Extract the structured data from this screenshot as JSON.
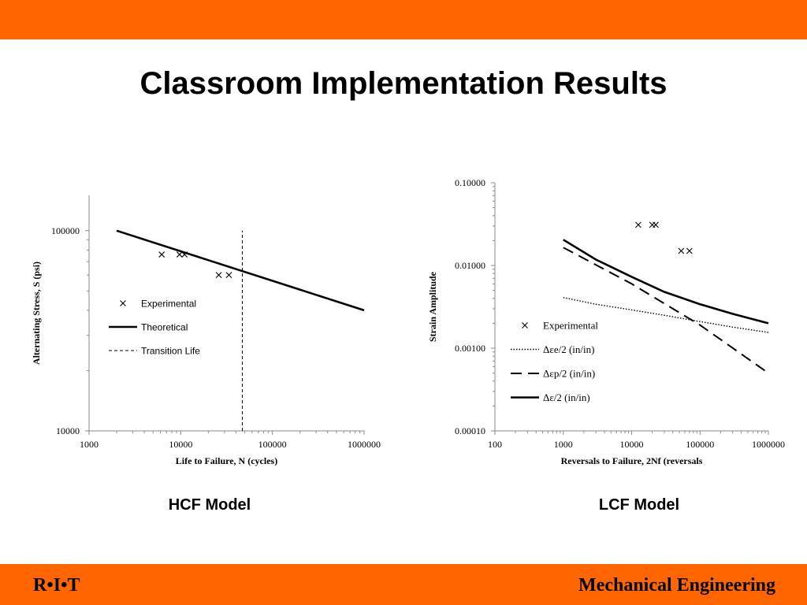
{
  "slide": {
    "title": "Classroom Implementation Results",
    "accent_color": "#ff6600",
    "footer_left": "R•I•T",
    "footer_right": "Mechanical Engineering"
  },
  "captions": [
    "HCF Model",
    "LCF Model"
  ],
  "chart_data": [
    {
      "type": "line",
      "xscale": "log",
      "yscale": "log",
      "xlim": [
        1000,
        1000000
      ],
      "ylim": [
        10000,
        150000
      ],
      "xticks": [
        "1000",
        "10000",
        "100000",
        "1000000"
      ],
      "yticks": [
        "10000",
        "100000"
      ],
      "xlabel": "Life to Failure, N (cycles)",
      "ylabel": "Alternating Stress, S (psi)",
      "legend_position": "left-middle",
      "series": [
        {
          "name": "Experimental",
          "style": "marker-x",
          "points": [
            [
              6200,
              76000
            ],
            [
              9700,
              76000
            ],
            [
              11000,
              76000
            ],
            [
              26000,
              60000
            ],
            [
              33500,
              60000
            ]
          ]
        },
        {
          "name": "Theoretical",
          "style": "solid",
          "points": [
            [
              2000,
              100000
            ],
            [
              1000000,
              40000
            ]
          ]
        },
        {
          "name": "Transition Life",
          "style": "dashed",
          "points": [
            [
              47000,
              10000
            ],
            [
              47000,
              100000
            ]
          ]
        }
      ]
    },
    {
      "type": "line",
      "xscale": "log",
      "yscale": "log",
      "xlim": [
        100,
        1000000
      ],
      "ylim": [
        0.0001,
        0.1
      ],
      "xticks": [
        "100",
        "1000",
        "10000",
        "100000",
        "1000000"
      ],
      "yticks": [
        "0.00010",
        "0.00100",
        "0.01000",
        "0.10000"
      ],
      "xlabel": "Reversals to Failure, 2Nf (reversals",
      "ylabel": "Strain Amplitude",
      "legend_position": "left-middle",
      "series": [
        {
          "name": "Experimental",
          "style": "marker-x",
          "points": [
            [
              12500,
              0.031
            ],
            [
              20000,
              0.031
            ],
            [
              22500,
              0.031
            ],
            [
              53000,
              0.015
            ],
            [
              70000,
              0.015
            ]
          ]
        },
        {
          "name": "Δεe/2 (in/in)",
          "style": "dotted",
          "points": [
            [
              1000,
              0.0041
            ],
            [
              3000,
              0.0034
            ],
            [
              10000,
              0.0029
            ],
            [
              30000,
              0.0025
            ],
            [
              100000,
              0.0021
            ],
            [
              300000,
              0.0018
            ],
            [
              1000000,
              0.00155
            ]
          ]
        },
        {
          "name": "Δεp/2 (in/in)",
          "style": "long-dash",
          "points": [
            [
              1000,
              0.0165
            ],
            [
              10000,
              0.006
            ],
            [
              100000,
              0.0019
            ],
            [
              1000000,
              0.0005
            ]
          ]
        },
        {
          "name": "Δε/2 (in/in)",
          "style": "solid",
          "points": [
            [
              1000,
              0.0205
            ],
            [
              3000,
              0.0118
            ],
            [
              10000,
              0.0073
            ],
            [
              30000,
              0.0048
            ],
            [
              100000,
              0.0034
            ],
            [
              300000,
              0.0026
            ],
            [
              1000000,
              0.002
            ]
          ]
        }
      ]
    }
  ]
}
